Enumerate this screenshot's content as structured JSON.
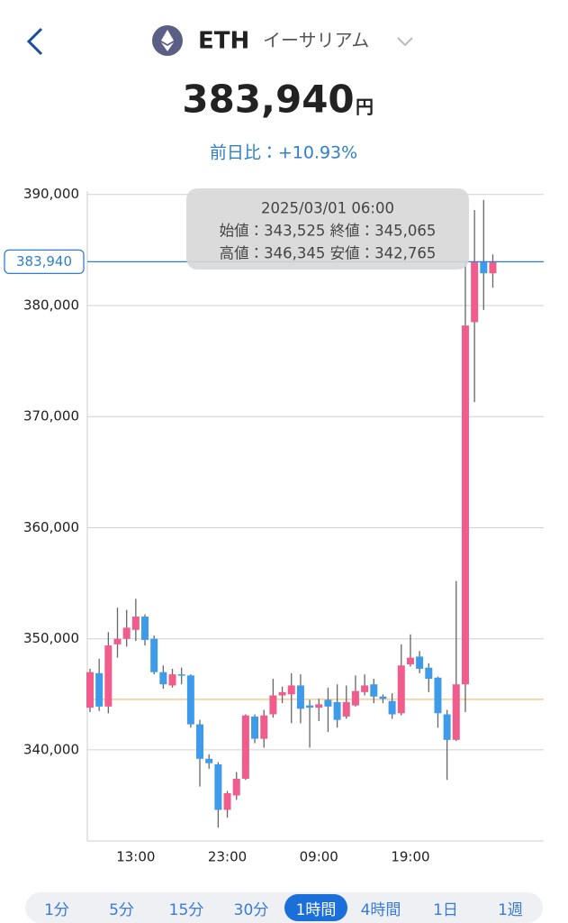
{
  "header": {
    "symbol": "ETH",
    "name": "イーサリアム",
    "price": "383,940",
    "unit": "円",
    "change": "前日比：+10.93%"
  },
  "chart_data": {
    "type": "candlestick",
    "categories": [
      null,
      null,
      null,
      null,
      null,
      "13:00",
      null,
      null,
      null,
      null,
      null,
      null,
      null,
      null,
      null,
      "23:00",
      null,
      null,
      null,
      null,
      null,
      null,
      null,
      null,
      null,
      "09:00",
      null,
      null,
      null,
      null,
      null,
      null,
      null,
      null,
      null,
      "19:00",
      null,
      null,
      null,
      null,
      null,
      null,
      null,
      null,
      null
    ],
    "open": [
      343800,
      346900,
      343900,
      349500,
      350000,
      350800,
      352000,
      350000,
      347000,
      345800,
      346800,
      346700,
      342300,
      339200,
      338700,
      334600,
      335900,
      337400,
      343000,
      341000,
      343200,
      344900,
      345000,
      345800,
      344000,
      343800,
      344500,
      344300,
      343000,
      344000,
      345200,
      345900,
      344800,
      344400,
      343300,
      347700,
      348400,
      347400,
      346500,
      343200,
      340900,
      345900,
      378500,
      383900,
      382900
    ],
    "high": [
      347300,
      348200,
      350600,
      352800,
      352600,
      353600,
      352200,
      350300,
      347600,
      347300,
      347400,
      346800,
      342700,
      339600,
      338900,
      336300,
      338000,
      343200,
      343200,
      343600,
      346400,
      345700,
      346900,
      346800,
      344500,
      344600,
      345600,
      345900,
      345800,
      346700,
      346800,
      346400,
      345000,
      345100,
      349500,
      350400,
      348900,
      347800,
      346600,
      343600,
      355200,
      384000,
      388600,
      389500,
      384600
    ],
    "low": [
      343400,
      343500,
      343300,
      348300,
      349300,
      349800,
      349400,
      346800,
      345500,
      345600,
      345900,
      342000,
      336700,
      338300,
      333000,
      333900,
      335500,
      337300,
      340600,
      340200,
      342900,
      344200,
      342400,
      342400,
      340200,
      342600,
      341600,
      342000,
      342800,
      343900,
      344900,
      344200,
      344200,
      342800,
      343100,
      347500,
      346900,
      345200,
      342000,
      337300,
      340800,
      343400,
      371300,
      379600,
      381600
    ],
    "close": [
      347000,
      343900,
      349400,
      350000,
      351000,
      352000,
      349900,
      347000,
      345900,
      346800,
      346700,
      342300,
      339200,
      338800,
      334600,
      336100,
      337400,
      343100,
      341000,
      343100,
      344900,
      345200,
      345800,
      343700,
      343800,
      344100,
      343900,
      342700,
      344300,
      345300,
      345800,
      344800,
      344600,
      343200,
      347600,
      348300,
      347300,
      346400,
      343300,
      340900,
      345900,
      378200,
      383900,
      382900,
      383940
    ],
    "up_color": "#f25c8c",
    "down_color": "#3d9be9",
    "ylim": [
      331800,
      390300
    ],
    "yticks": [
      {
        "value": 340000,
        "label": "340,000"
      },
      {
        "value": 350000,
        "label": "350,000"
      },
      {
        "value": 360000,
        "label": "360,000"
      },
      {
        "value": 370000,
        "label": "370,000"
      },
      {
        "value": 380000,
        "label": "380,000"
      },
      {
        "value": 390000,
        "label": "390,000"
      }
    ],
    "grid": true,
    "last_price": {
      "value": 383940,
      "label": "383,940"
    },
    "reference_line": 344550,
    "tooltip": [
      "2025/03/01 06:00",
      "始値：343,525 終値：345,065",
      "高値：346,345 安値：342,765"
    ]
  },
  "timeframes": [
    "1分",
    "5分",
    "15分",
    "30分",
    "1時間",
    "4時間",
    "1日",
    "1週"
  ],
  "selected_timeframe": 4
}
